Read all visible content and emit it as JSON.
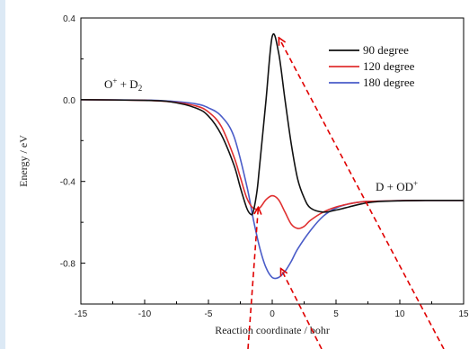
{
  "chart_data": {
    "type": "line",
    "title": "",
    "xlabel": "Reaction coordinate / bohr",
    "ylabel": "Energy / eV",
    "xlim": [
      -15,
      15
    ],
    "ylim": [
      -1.0,
      0.4
    ],
    "xticks": [
      -15,
      -10,
      -5,
      0,
      5,
      10,
      15
    ],
    "yticks": [
      0.4,
      0.0,
      -0.4,
      -0.8
    ],
    "ytick_labels": [
      "0.4",
      "0.0",
      "-0.4",
      "-0.8"
    ],
    "grid": false,
    "legend_position": "top-right",
    "annotations": {
      "left": {
        "base": "O",
        "sup": "+",
        "mid": " + D",
        "sub": "2"
      },
      "right": {
        "base": "D + OD",
        "sup": "+"
      }
    },
    "series": [
      {
        "name": "90 degree",
        "color": "#111111",
        "x": [
          -15,
          -10,
          -8,
          -6,
          -5,
          -4,
          -3,
          -2.5,
          -2,
          -1.7,
          -1.5,
          -1.2,
          -1,
          -0.5,
          0,
          0.5,
          1,
          1.5,
          2,
          2.5,
          3,
          4,
          5,
          6,
          7,
          8,
          10,
          12,
          15
        ],
        "y": [
          0.0,
          -0.003,
          -0.01,
          -0.04,
          -0.08,
          -0.17,
          -0.32,
          -0.43,
          -0.53,
          -0.56,
          -0.55,
          -0.45,
          -0.33,
          -0.01,
          0.31,
          0.23,
          0.0,
          -0.22,
          -0.39,
          -0.48,
          -0.53,
          -0.55,
          -0.54,
          -0.525,
          -0.51,
          -0.5,
          -0.495,
          -0.493,
          -0.493
        ]
      },
      {
        "name": "120 degree",
        "color": "#e03030",
        "x": [
          -15,
          -10,
          -8,
          -6,
          -5,
          -4,
          -3,
          -2.5,
          -2,
          -1.5,
          -1,
          -0.5,
          0,
          0.5,
          1,
          1.5,
          2,
          2.5,
          3,
          4,
          5,
          6,
          7,
          8,
          10,
          12,
          15
        ],
        "y": [
          0.0,
          -0.003,
          -0.01,
          -0.03,
          -0.06,
          -0.13,
          -0.28,
          -0.38,
          -0.48,
          -0.53,
          -0.53,
          -0.49,
          -0.47,
          -0.49,
          -0.55,
          -0.61,
          -0.63,
          -0.62,
          -0.59,
          -0.55,
          -0.525,
          -0.51,
          -0.5,
          -0.497,
          -0.494,
          -0.493,
          -0.493
        ]
      },
      {
        "name": "180 degree",
        "color": "#4a5cc8",
        "x": [
          -15,
          -10,
          -8,
          -6,
          -5,
          -4,
          -3,
          -2,
          -1.5,
          -1,
          -0.5,
          0,
          0.5,
          1,
          1.5,
          2,
          3,
          4,
          5,
          6,
          7,
          8,
          10,
          12,
          15
        ],
        "y": [
          0.0,
          -0.002,
          -0.007,
          -0.02,
          -0.04,
          -0.08,
          -0.18,
          -0.42,
          -0.58,
          -0.72,
          -0.82,
          -0.87,
          -0.87,
          -0.84,
          -0.79,
          -0.73,
          -0.64,
          -0.57,
          -0.53,
          -0.51,
          -0.5,
          -0.497,
          -0.494,
          -0.493,
          -0.493
        ]
      }
    ]
  }
}
